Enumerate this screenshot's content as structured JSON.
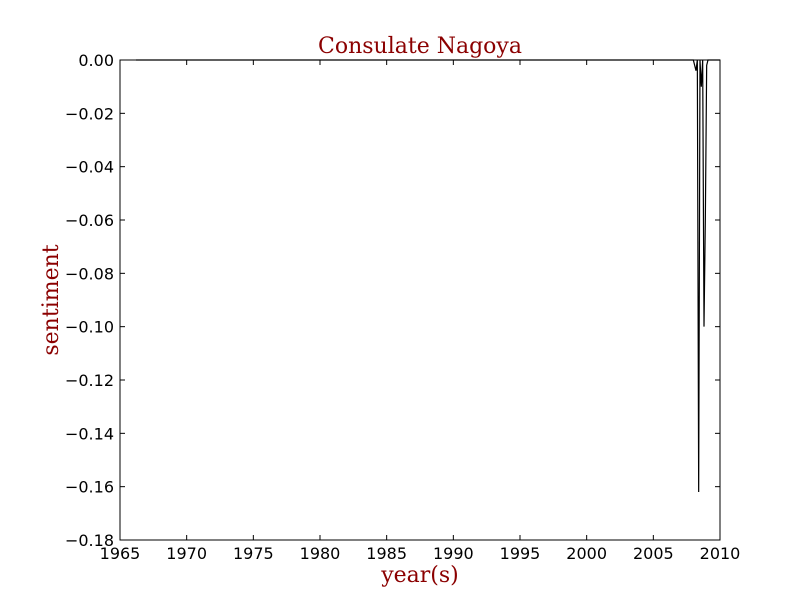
{
  "chart_data": {
    "type": "line",
    "title": "Consulate Nagoya",
    "xlabel": "year(s)",
    "ylabel": "sentiment",
    "xlim": [
      1965,
      2010
    ],
    "ylim": [
      -0.18,
      0.0
    ],
    "xticks": [
      1965,
      1970,
      1975,
      1980,
      1985,
      1990,
      1995,
      2000,
      2005,
      2010
    ],
    "yticks": [
      0.0,
      -0.02,
      -0.04,
      -0.06,
      -0.08,
      -0.1,
      -0.12,
      -0.14,
      -0.16,
      -0.18
    ],
    "ytick_labels": [
      "0.00",
      "−0.02",
      "−0.04",
      "−0.06",
      "−0.08",
      "−0.10",
      "−0.12",
      "−0.14",
      "−0.16",
      "−0.18"
    ],
    "grid": false,
    "line_color": "#000000",
    "series": [
      {
        "x": [
          1966.2,
          2008.0,
          2008.2,
          2008.3,
          2008.4,
          2008.5,
          2008.6,
          2008.7,
          2008.8,
          2008.9,
          2009.0,
          2009.1,
          2010.0
        ],
        "y": [
          0.0,
          0.0,
          -0.004,
          0.0,
          -0.162,
          0.0,
          -0.01,
          0.0,
          -0.1,
          -0.06,
          -0.002,
          0.0,
          0.0
        ]
      }
    ]
  }
}
